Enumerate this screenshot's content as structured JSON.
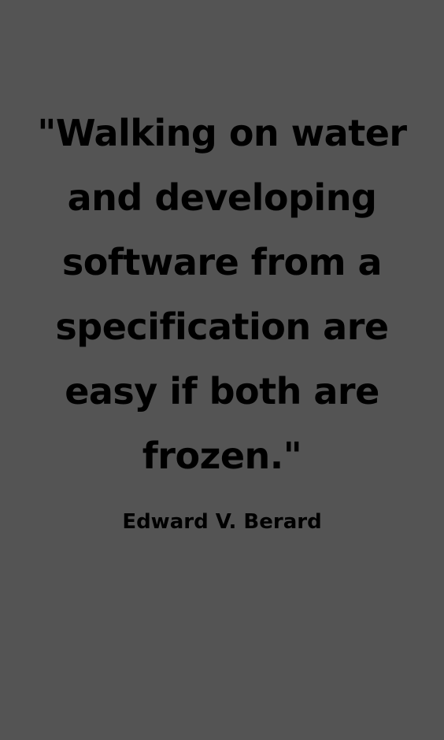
{
  "quote": {
    "lines": [
      "\"Walking on water",
      "and developing",
      "software from a",
      "specification are",
      "easy if both are",
      "frozen.\""
    ]
  },
  "author": "Edward V. Berard",
  "colors": {
    "background": "#545454",
    "text": "#000000"
  }
}
